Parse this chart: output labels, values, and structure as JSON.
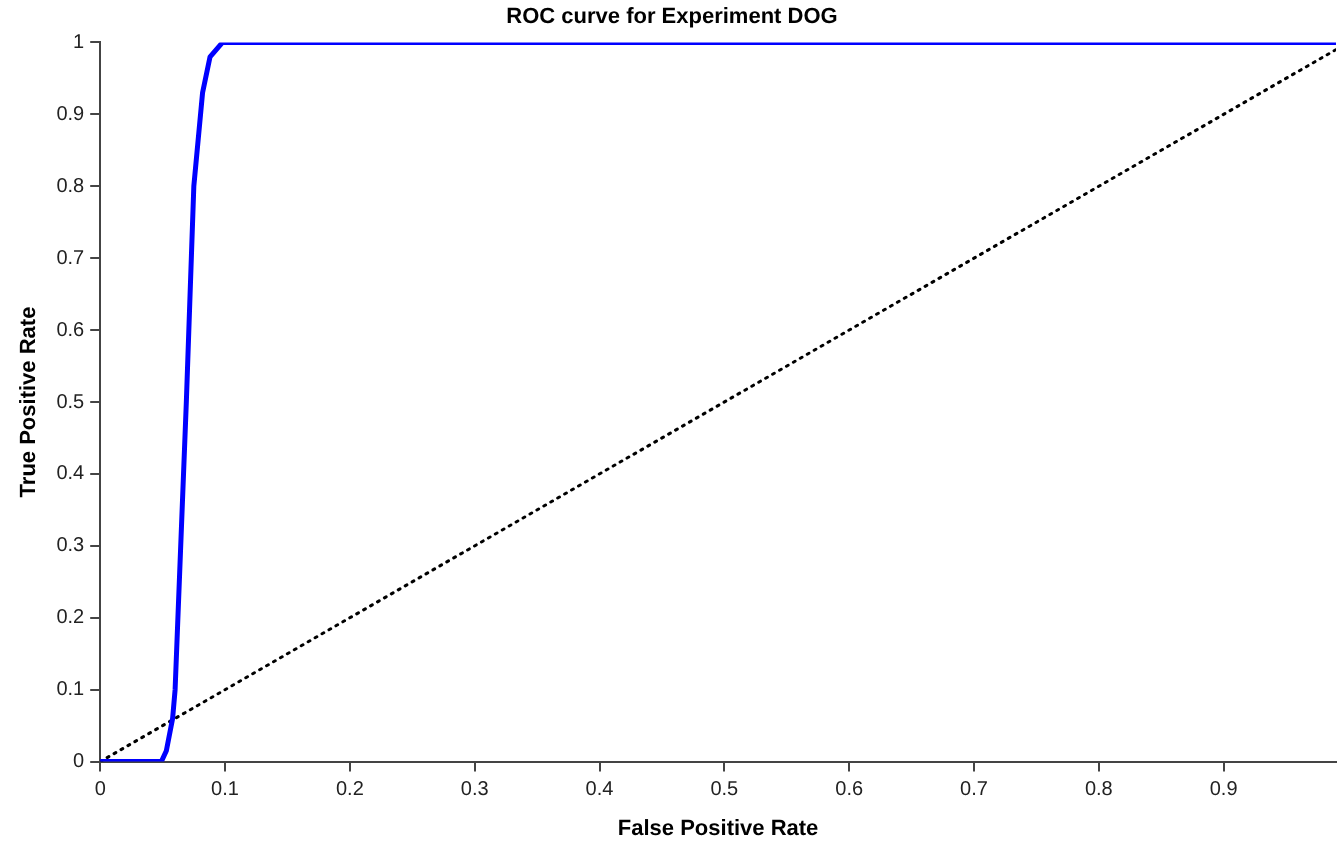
{
  "chart_data": {
    "type": "line",
    "title": "ROC curve for Experiment DOG",
    "xlabel": "False Positive Rate",
    "ylabel": "True Positive Rate",
    "xlim": [
      0,
      0.99
    ],
    "ylim": [
      0,
      1
    ],
    "xticks": [
      0,
      0.1,
      0.2,
      0.3,
      0.4,
      0.5,
      0.6,
      0.7,
      0.8,
      0.9
    ],
    "yticks": [
      0,
      0.1,
      0.2,
      0.3,
      0.4,
      0.5,
      0.6,
      0.7,
      0.8,
      0.9,
      1
    ],
    "grid": false,
    "legend": false,
    "marker": "none",
    "series": [
      {
        "color": "#0000ff",
        "line_style": "solid",
        "x": [
          0,
          0.049,
          0.053,
          0.058,
          0.06,
          0.069,
          0.075,
          0.082,
          0.088,
          0.098,
          0.99
        ],
        "values": [
          0,
          0,
          0.015,
          0.06,
          0.1,
          0.5,
          0.8,
          0.93,
          0.98,
          1,
          1
        ]
      },
      {
        "color": "#000000",
        "line_style": "dotted",
        "x": [
          0,
          0.99
        ],
        "values": [
          0,
          0.99
        ]
      }
    ]
  }
}
